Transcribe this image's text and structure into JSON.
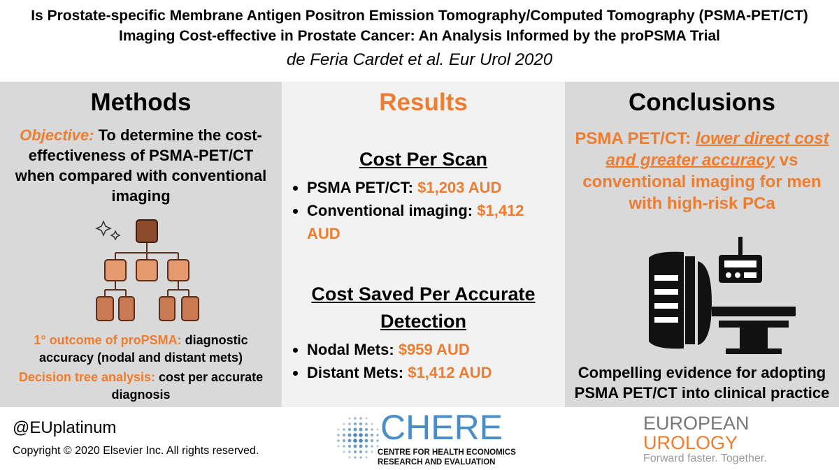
{
  "header": {
    "title": "Is Prostate-specific Membrane Antigen Positron Emission Tomography/Computed Tomography (PSMA-PET/CT) Imaging Cost-effective in Prostate Cancer: An Analysis Informed by the proPSMA Trial",
    "citation": "de Feria Cardet et al. Eur Urol 2020"
  },
  "methods": {
    "heading": "Methods",
    "objective_label": "Objective:",
    "objective_text": "To determine the cost-effectiveness of PSMA-PET/CT when compared with conventional imaging",
    "outcome_label": "1° outcome of proPSMA:",
    "outcome_text": "diagnostic accuracy (nodal and distant mets)",
    "analysis_label": "Decision tree analysis:",
    "analysis_text": "cost per accurate diagnosis"
  },
  "results": {
    "heading": "Results",
    "sections": [
      {
        "title": "Cost Per Scan",
        "items": [
          {
            "label": "PSMA PET/CT:",
            "value": "$1,203 AUD"
          },
          {
            "label": "Conventional imaging:",
            "value": "$1,412 AUD"
          }
        ]
      },
      {
        "title": "Cost Saved Per Accurate Detection",
        "items": [
          {
            "label": "Nodal Mets:",
            "value": "$959 AUD"
          },
          {
            "label": "Distant Mets:",
            "value": "$1,412 AUD"
          }
        ]
      }
    ]
  },
  "conclusions": {
    "heading": "Conclusions",
    "lead": "PSMA PET/CT:",
    "emphasis": "lower direct cost and greater accuracy",
    "rest": "vs conventional imaging for men with high-risk PCa",
    "statement": "Compelling evidence for adopting PSMA PET/CT into clinical practice"
  },
  "footer": {
    "handle": "@EUplatinum",
    "copyright": "Copyright © 2020 Elsevier Inc. All rights reserved.",
    "chere": {
      "name": "CHERE",
      "line1": "CENTRE FOR HEALTH ECONOMICS",
      "line2": "RESEARCH AND EVALUATION"
    },
    "journal": {
      "line1": "EUROPEAN",
      "line2": "UROLOGY",
      "tagline": "Forward faster. Together."
    }
  }
}
